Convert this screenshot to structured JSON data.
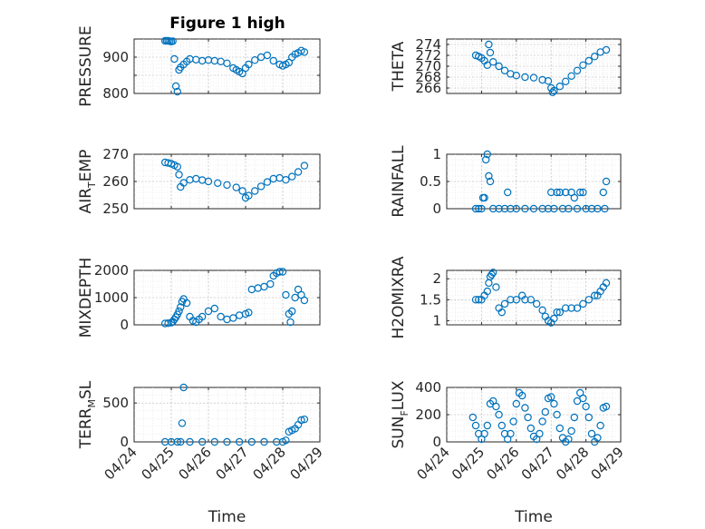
{
  "figure": {
    "title": "Figure 1 high"
  },
  "colors": {
    "series": "#0072BD",
    "axes": "#262626",
    "grid": "#b8b8b8",
    "background": "#ffffff"
  },
  "chart_data": [
    {
      "type": "scatter",
      "ylabel": "PRESSURE",
      "ylabel_sub": "",
      "ylim": [
        800,
        950
      ],
      "yticks": [
        800,
        850,
        900
      ],
      "yticklabels": [
        "800",
        "",
        "900"
      ],
      "show_x_labels": false,
      "grid": true,
      "x": [
        "04/24 20:00",
        "04/24 21:00",
        "04/24 22:00",
        "04/24 23:00",
        "04/25 00:00",
        "04/25 01:00",
        "04/25 02:00",
        "04/25 03:00",
        "04/25 04:00",
        "04/25 05:00",
        "04/25 06:00",
        "04/25 08:00",
        "04/25 10:00",
        "04/25 12:00",
        "04/25 16:00",
        "04/25 20:00",
        "04/26 00:00",
        "04/26 04:00",
        "04/26 08:00",
        "04/26 12:00",
        "04/26 16:00",
        "04/26 18:00",
        "04/26 20:00",
        "04/26 22:00",
        "04/27 00:00",
        "04/27 02:00",
        "04/27 06:00",
        "04/27 10:00",
        "04/27 14:00",
        "04/27 18:00",
        "04/27 22:00",
        "04/28 00:00",
        "04/28 02:00",
        "04/28 04:00",
        "04/28 06:00",
        "04/28 08:00",
        "04/28 10:00",
        "04/28 12:00",
        "04/28 14:00"
      ],
      "y": [
        945,
        945,
        945,
        944,
        943,
        944,
        895,
        820,
        805,
        865,
        872,
        880,
        888,
        895,
        893,
        890,
        892,
        890,
        888,
        883,
        870,
        865,
        860,
        855,
        870,
        880,
        892,
        900,
        905,
        890,
        880,
        876,
        880,
        885,
        900,
        908,
        912,
        918,
        914
      ]
    },
    {
      "type": "scatter",
      "ylabel": "THETA",
      "ylabel_sub": "",
      "ylim": [
        265,
        275
      ],
      "yticks": [
        266,
        268,
        270,
        272,
        274
      ],
      "yticklabels": [
        "266",
        "268",
        "270",
        "272",
        "274"
      ],
      "show_x_labels": false,
      "grid": true,
      "x": [
        "04/24 20:00",
        "04/24 22:00",
        "04/25 00:00",
        "04/25 02:00",
        "04/25 04:00",
        "04/25 05:00",
        "04/25 06:00",
        "04/25 08:00",
        "04/25 12:00",
        "04/25 16:00",
        "04/25 20:00",
        "04/26 00:00",
        "04/26 06:00",
        "04/26 12:00",
        "04/26 18:00",
        "04/26 22:00",
        "04/27 00:00",
        "04/27 01:00",
        "04/27 02:00",
        "04/27 06:00",
        "04/27 10:00",
        "04/27 14:00",
        "04/27 18:00",
        "04/27 22:00",
        "04/28 02:00",
        "04/28 06:00",
        "04/28 10:00",
        "04/28 14:00"
      ],
      "y": [
        272,
        271.8,
        271.5,
        271,
        270.2,
        274,
        272.5,
        270.8,
        270,
        269.2,
        268.6,
        268.3,
        268,
        267.9,
        267.5,
        267.3,
        266,
        265.2,
        265.5,
        266.3,
        267.2,
        268.2,
        269.2,
        270.2,
        271,
        271.8,
        272.6,
        273
      ]
    },
    {
      "type": "scatter",
      "ylabel": "AIR",
      "ylabel_sub": "T",
      "ylabel_suffix": "EMP",
      "ylim": [
        250,
        270
      ],
      "yticks": [
        250,
        260,
        270
      ],
      "yticklabels": [
        "250",
        "260",
        "270"
      ],
      "show_x_labels": false,
      "grid": true,
      "x": [
        "04/24 20:00",
        "04/24 22:00",
        "04/25 00:00",
        "04/25 02:00",
        "04/25 04:00",
        "04/25 05:00",
        "04/25 06:00",
        "04/25 08:00",
        "04/25 12:00",
        "04/25 16:00",
        "04/25 20:00",
        "04/26 00:00",
        "04/26 06:00",
        "04/26 12:00",
        "04/26 18:00",
        "04/26 22:00",
        "04/27 00:00",
        "04/27 02:00",
        "04/27 06:00",
        "04/27 10:00",
        "04/27 14:00",
        "04/27 18:00",
        "04/27 22:00",
        "04/28 02:00",
        "04/28 06:00",
        "04/28 10:00",
        "04/28 14:00"
      ],
      "y": [
        267,
        266.8,
        266.5,
        266,
        265.4,
        262.5,
        258,
        259.5,
        260.6,
        261,
        260.5,
        260,
        259.4,
        258.7,
        257.8,
        256.5,
        254,
        254.8,
        256.5,
        258.2,
        259.8,
        261,
        261.3,
        260.6,
        261.8,
        263.5,
        265.8
      ]
    },
    {
      "type": "scatter",
      "ylabel": "RAINFALL",
      "ylabel_sub": "",
      "ylim": [
        0,
        1
      ],
      "yticks": [
        0,
        0.5,
        1
      ],
      "yticklabels": [
        "0",
        "0.5",
        "1"
      ],
      "show_x_labels": false,
      "grid": true,
      "x": [
        "04/24 20:00",
        "04/24 22:00",
        "04/25 00:00",
        "04/25 01:00",
        "04/25 02:00",
        "04/25 03:00",
        "04/25 04:00",
        "04/25 05:00",
        "04/25 06:00",
        "04/25 08:00",
        "04/25 12:00",
        "04/25 16:00",
        "04/25 18:00",
        "04/25 20:00",
        "04/26 00:00",
        "04/26 06:00",
        "04/26 12:00",
        "04/26 18:00",
        "04/26 22:00",
        "04/27 00:00",
        "04/27 02:00",
        "04/27 04:00",
        "04/27 06:00",
        "04/27 08:00",
        "04/27 10:00",
        "04/27 12:00",
        "04/27 14:00",
        "04/27 16:00",
        "04/27 18:00",
        "04/27 20:00",
        "04/27 22:00",
        "04/28 00:00",
        "04/28 04:00",
        "04/28 08:00",
        "04/28 12:00",
        "04/28 13:00",
        "04/28 14:00"
      ],
      "y": [
        0,
        0,
        0,
        0.2,
        0.2,
        0.9,
        1,
        0.6,
        0.5,
        0,
        0,
        0,
        0.3,
        0,
        0,
        0,
        0,
        0,
        0,
        0.3,
        0,
        0.3,
        0.3,
        0,
        0.3,
        0,
        0.3,
        0.2,
        0,
        0.3,
        0.3,
        0,
        0,
        0,
        0.3,
        0,
        0.5
      ]
    },
    {
      "type": "scatter",
      "ylabel": "MIXDEPTH",
      "ylabel_sub": "",
      "ylim": [
        0,
        2000
      ],
      "yticks": [
        0,
        1000,
        2000
      ],
      "yticklabels": [
        "0",
        "1000",
        "2000"
      ],
      "show_x_labels": false,
      "grid": true,
      "x": [
        "04/24 20:00",
        "04/24 22:00",
        "04/25 00:00",
        "04/25 01:00",
        "04/25 02:00",
        "04/25 03:00",
        "04/25 04:00",
        "04/25 05:00",
        "04/25 06:00",
        "04/25 07:00",
        "04/25 08:00",
        "04/25 10:00",
        "04/25 12:00",
        "04/25 14:00",
        "04/25 16:00",
        "04/25 18:00",
        "04/25 20:00",
        "04/26 00:00",
        "04/26 04:00",
        "04/26 08:00",
        "04/26 12:00",
        "04/26 16:00",
        "04/26 20:00",
        "04/27 00:00",
        "04/27 02:00",
        "04/27 04:00",
        "04/27 08:00",
        "04/27 12:00",
        "04/27 16:00",
        "04/27 18:00",
        "04/27 20:00",
        "04/27 22:00",
        "04/28 00:00",
        "04/28 02:00",
        "04/28 04:00",
        "04/28 05:00",
        "04/28 06:00",
        "04/28 08:00",
        "04/28 10:00",
        "04/28 12:00",
        "04/28 14:00"
      ],
      "y": [
        50,
        60,
        80,
        120,
        200,
        280,
        380,
        500,
        650,
        850,
        950,
        800,
        300,
        150,
        100,
        200,
        300,
        500,
        600,
        300,
        200,
        250,
        350,
        400,
        450,
        1300,
        1350,
        1400,
        1500,
        1800,
        1900,
        1950,
        1950,
        1100,
        400,
        100,
        500,
        1000,
        1300,
        1100,
        900
      ]
    },
    {
      "type": "scatter",
      "ylabel": "H2OMIXRA",
      "ylabel_sub": "",
      "ylim": [
        0.9,
        2.2
      ],
      "yticks": [
        1,
        1.5,
        2
      ],
      "yticklabels": [
        "1",
        "1.5",
        "2"
      ],
      "show_x_labels": false,
      "grid": true,
      "x": [
        "04/24 20:00",
        "04/24 22:00",
        "04/25 00:00",
        "04/25 02:00",
        "04/25 04:00",
        "04/25 05:00",
        "04/25 06:00",
        "04/25 07:00",
        "04/25 08:00",
        "04/25 10:00",
        "04/25 12:00",
        "04/25 14:00",
        "04/25 16:00",
        "04/25 20:00",
        "04/26 00:00",
        "04/26 04:00",
        "04/26 06:00",
        "04/26 10:00",
        "04/26 14:00",
        "04/26 18:00",
        "04/26 20:00",
        "04/26 22:00",
        "04/27 00:00",
        "04/27 02:00",
        "04/27 04:00",
        "04/27 06:00",
        "04/27 10:00",
        "04/27 14:00",
        "04/27 18:00",
        "04/27 22:00",
        "04/28 02:00",
        "04/28 06:00",
        "04/28 08:00",
        "04/28 10:00",
        "04/28 12:00",
        "04/28 14:00"
      ],
      "y": [
        1.5,
        1.5,
        1.5,
        1.6,
        1.7,
        1.9,
        2.05,
        2.1,
        2.15,
        1.8,
        1.3,
        1.2,
        1.4,
        1.5,
        1.5,
        1.6,
        1.5,
        1.5,
        1.4,
        1.25,
        1.1,
        1,
        0.95,
        1.05,
        1.2,
        1.2,
        1.3,
        1.3,
        1.3,
        1.4,
        1.5,
        1.6,
        1.6,
        1.7,
        1.8,
        1.9
      ]
    },
    {
      "type": "scatter",
      "ylabel": "TERR",
      "ylabel_sub": "M",
      "ylabel_suffix": "SL",
      "ylim": [
        0,
        700
      ],
      "yticks": [
        0,
        500
      ],
      "yticklabels": [
        "0",
        "500"
      ],
      "show_x_labels": true,
      "xlabel": "Time",
      "grid": true,
      "x": [
        "04/24 20:00",
        "04/25 00:00",
        "04/25 04:00",
        "04/25 06:00",
        "04/25 07:00",
        "04/25 08:00",
        "04/25 12:00",
        "04/25 20:00",
        "04/26 04:00",
        "04/26 12:00",
        "04/26 20:00",
        "04/27 04:00",
        "04/27 12:00",
        "04/27 20:00",
        "04/28 00:00",
        "04/28 02:00",
        "04/28 04:00",
        "04/28 06:00",
        "04/28 08:00",
        "04/28 10:00",
        "04/28 12:00",
        "04/28 14:00"
      ],
      "y": [
        0,
        0,
        0,
        0,
        240,
        700,
        0,
        0,
        0,
        0,
        0,
        0,
        0,
        0,
        0,
        20,
        130,
        150,
        170,
        220,
        280,
        290
      ]
    },
    {
      "type": "scatter",
      "ylabel": "SUN",
      "ylabel_sub": "F",
      "ylabel_suffix": "LUX",
      "ylim": [
        0,
        400
      ],
      "yticks": [
        0,
        200,
        400
      ],
      "yticklabels": [
        "0",
        "200",
        "400"
      ],
      "show_x_labels": true,
      "xlabel": "Time",
      "grid": true,
      "x": [
        "04/24 18:00",
        "04/24 20:00",
        "04/24 22:00",
        "04/25 00:00",
        "04/25 02:00",
        "04/25 04:00",
        "04/25 06:00",
        "04/25 08:00",
        "04/25 10:00",
        "04/25 12:00",
        "04/25 14:00",
        "04/25 16:00",
        "04/25 18:00",
        "04/25 20:00",
        "04/25 22:00",
        "04/26 00:00",
        "04/26 02:00",
        "04/26 04:00",
        "04/26 06:00",
        "04/26 08:00",
        "04/26 10:00",
        "04/26 12:00",
        "04/26 14:00",
        "04/26 16:00",
        "04/26 18:00",
        "04/26 20:00",
        "04/26 22:00",
        "04/27 00:00",
        "04/27 02:00",
        "04/27 04:00",
        "04/27 06:00",
        "04/27 08:00",
        "04/27 10:00",
        "04/27 12:00",
        "04/27 14:00",
        "04/27 16:00",
        "04/27 18:00",
        "04/27 20:00",
        "04/27 22:00",
        "04/28 00:00",
        "04/28 02:00",
        "04/28 04:00",
        "04/28 06:00",
        "04/28 08:00",
        "04/28 10:00",
        "04/28 12:00",
        "04/28 14:00"
      ],
      "y": [
        180,
        120,
        60,
        20,
        60,
        120,
        280,
        300,
        260,
        200,
        120,
        60,
        20,
        60,
        150,
        280,
        360,
        340,
        250,
        180,
        100,
        40,
        20,
        60,
        150,
        220,
        320,
        330,
        280,
        200,
        100,
        30,
        0,
        20,
        80,
        180,
        300,
        360,
        320,
        260,
        180,
        60,
        0,
        30,
        120,
        250,
        260
      ]
    }
  ]
}
